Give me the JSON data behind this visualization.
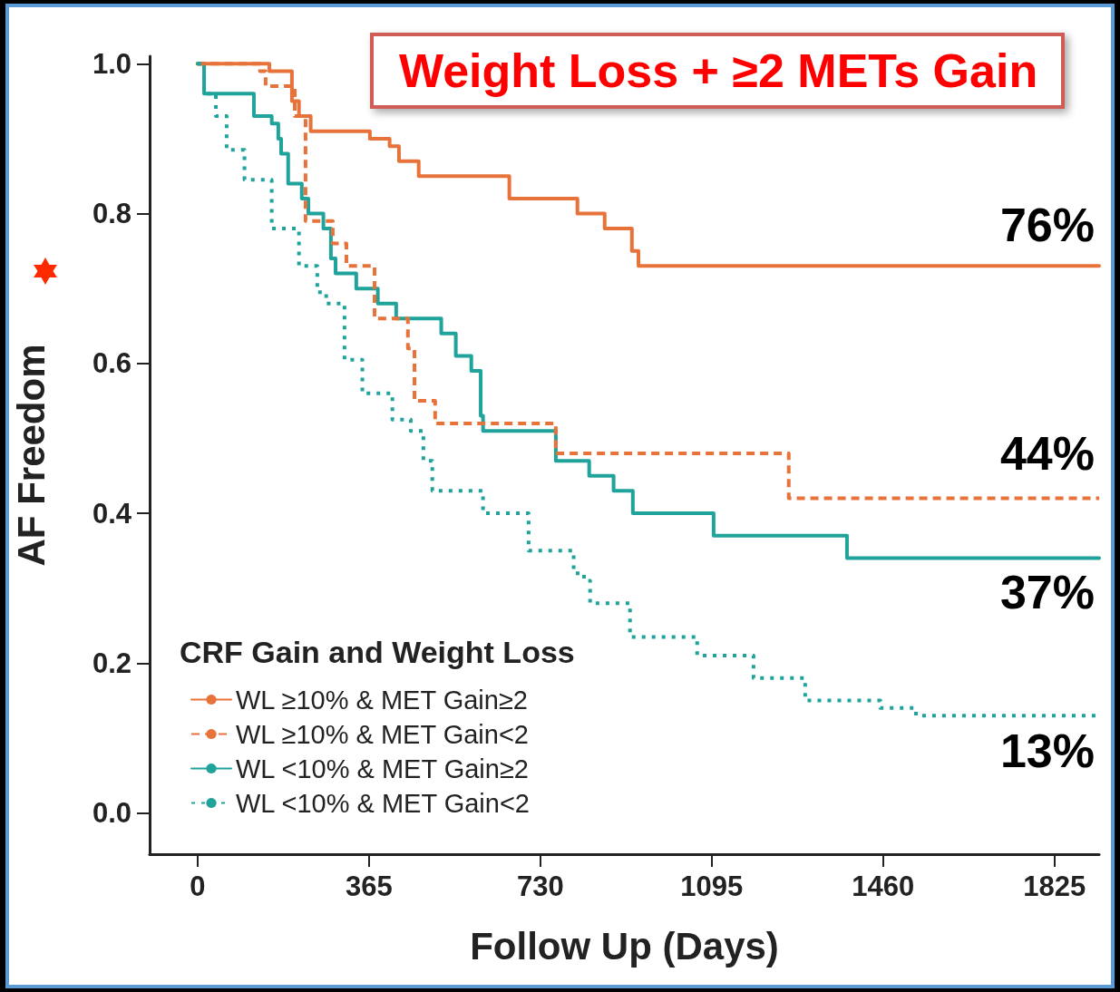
{
  "chart_data": {
    "type": "step",
    "title": "Weight Loss + ≥2 METs Gain",
    "xlabel": "Follow Up (Days)",
    "ylabel": "AF Freedom",
    "legend_title": "CRF Gain and Weight Loss",
    "xlim": [
      -102,
      1920
    ],
    "xticks": [
      0,
      365,
      730,
      1095,
      1460,
      1825
    ],
    "ylim": [
      -0.055,
      1.01
    ],
    "yticks": [
      {
        "value": 0,
        "label": "0.0"
      },
      0.2,
      0.4,
      0.6,
      0.8,
      {
        "value": 1,
        "label": "1.0"
      }
    ],
    "grid": false,
    "legend": "bottom left",
    "marker": "none",
    "series": [
      {
        "name": "WL ≥10% & MET Gain≥2",
        "color": "#e8733a",
        "line_style": "solid",
        "x": [
          0,
          153,
          201,
          216,
          241,
          367,
          409,
          429,
          471,
          664,
          809,
          867,
          925,
          939,
          1920
        ],
        "values": [
          1.0,
          0.99,
          0.95,
          0.93,
          0.91,
          0.9,
          0.89,
          0.87,
          0.85,
          0.82,
          0.8,
          0.78,
          0.75,
          0.73,
          0.73
        ]
      },
      {
        "name": "WL ≥10% & MET Gain<2",
        "color": "#e8733a",
        "line_style": "dashed",
        "x": [
          0,
          133,
          145,
          207,
          230,
          288,
          317,
          377,
          448,
          462,
          506,
          763,
          1259,
          1920
        ],
        "values": [
          1.0,
          0.99,
          0.97,
          0.93,
          0.79,
          0.76,
          0.73,
          0.66,
          0.62,
          0.55,
          0.52,
          0.48,
          0.42,
          0.42
        ]
      },
      {
        "name": "WL <10% & MET Gain≥2",
        "color": "#1fa39a",
        "line_style": "solid",
        "x": [
          0,
          14,
          120,
          158,
          172,
          178,
          193,
          222,
          236,
          268,
          284,
          294,
          338,
          384,
          423,
          519,
          550,
          583,
          603,
          608,
          763,
          834,
          886,
          927,
          1099,
          1383,
          1920
        ],
        "values": [
          1.0,
          0.96,
          0.93,
          0.92,
          0.9,
          0.88,
          0.84,
          0.82,
          0.8,
          0.78,
          0.74,
          0.72,
          0.7,
          0.68,
          0.66,
          0.64,
          0.61,
          0.59,
          0.53,
          0.51,
          0.47,
          0.45,
          0.43,
          0.4,
          0.37,
          0.34,
          0.34
        ]
      },
      {
        "name": "WL <10% & MET Gain<2",
        "color": "#1fa39a",
        "line_style": "dotted",
        "x": [
          0,
          14,
          39,
          62,
          100,
          158,
          216,
          255,
          274,
          313,
          351,
          415,
          454,
          481,
          500,
          558,
          608,
          705,
          801,
          823,
          836,
          921,
          1064,
          1184,
          1294,
          1454,
          1530,
          1920
        ],
        "values": [
          1.0,
          0.96,
          0.93,
          0.885,
          0.845,
          0.78,
          0.73,
          0.695,
          0.68,
          0.605,
          0.56,
          0.525,
          0.51,
          0.47,
          0.43,
          0.43,
          0.4,
          0.35,
          0.32,
          0.31,
          0.28,
          0.235,
          0.21,
          0.18,
          0.15,
          0.14,
          0.13,
          0.13
        ]
      }
    ],
    "annotations": [
      "76%",
      "44%",
      "37%",
      "13%"
    ]
  }
}
